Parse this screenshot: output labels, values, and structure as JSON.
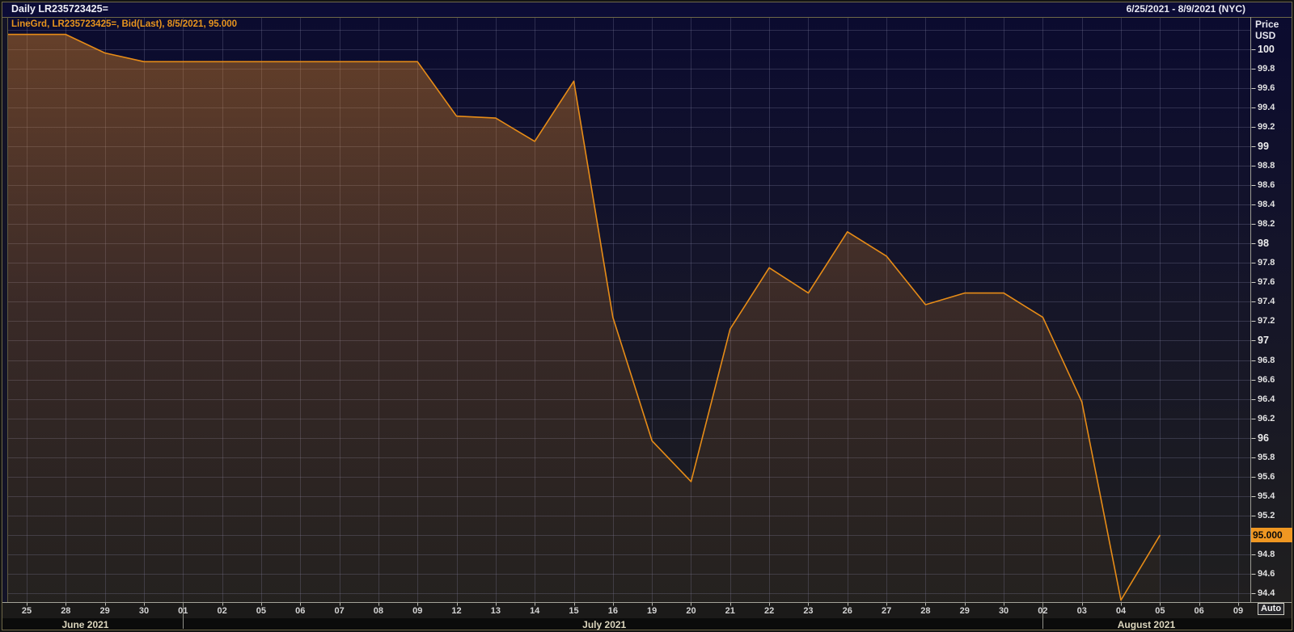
{
  "window": {
    "title": "Daily LR235723425=",
    "date_range": "6/25/2021 - 8/9/2021 (NYC)"
  },
  "legend": {
    "text": "LineGrd, LR235723425=, Bid(Last), 8/5/2021, 95.000"
  },
  "y_axis": {
    "title_line1": "Price",
    "title_line2": "USD",
    "tick_labels": [
      "100",
      "99.8",
      "99.6",
      "99.4",
      "99.2",
      "99",
      "98.8",
      "98.6",
      "98.4",
      "98.2",
      "98",
      "97.8",
      "97.6",
      "97.4",
      "97.2",
      "97",
      "96.8",
      "96.6",
      "96.4",
      "96.2",
      "96",
      "95.8",
      "95.6",
      "95.4",
      "95.2",
      "94.8",
      "94.6",
      "94.4"
    ],
    "last_price_badge": "95.000",
    "auto_button": "Auto"
  },
  "x_axis": {
    "tick_labels": [
      "25",
      "28",
      "29",
      "30",
      "01",
      "02",
      "05",
      "06",
      "07",
      "08",
      "09",
      "12",
      "13",
      "14",
      "15",
      "16",
      "19",
      "20",
      "21",
      "22",
      "23",
      "26",
      "27",
      "28",
      "29",
      "30",
      "02",
      "03",
      "04",
      "05",
      "06",
      "09"
    ]
  },
  "chart_data": {
    "type": "area",
    "title": "Daily LR235723425=",
    "series_name": "LR235723425= Bid(Last)",
    "x": [
      "Jun 25",
      "Jun 28",
      "Jun 29",
      "Jun 30",
      "Jul 01",
      "Jul 02",
      "Jul 05",
      "Jul 06",
      "Jul 07",
      "Jul 08",
      "Jul 09",
      "Jul 12",
      "Jul 13",
      "Jul 14",
      "Jul 15",
      "Jul 16",
      "Jul 19",
      "Jul 20",
      "Jul 21",
      "Jul 22",
      "Jul 23",
      "Jul 26",
      "Jul 27",
      "Jul 28",
      "Jul 29",
      "Jul 30",
      "Aug 02",
      "Aug 03",
      "Aug 04",
      "Aug 05"
    ],
    "values": [
      100.15,
      100.15,
      99.96,
      99.87,
      99.87,
      99.87,
      99.87,
      99.87,
      99.87,
      99.87,
      99.87,
      99.31,
      99.29,
      99.05,
      99.67,
      97.24,
      95.97,
      95.55,
      97.12,
      97.75,
      97.49,
      98.12,
      97.87,
      97.37,
      97.49,
      97.49,
      97.24,
      96.37,
      94.33,
      95.0
    ],
    "last_value": 95.0,
    "ylabel": "Price USD",
    "ylim": [
      94.31,
      100.33
    ],
    "y_tick_step": 0.2,
    "grid": true,
    "x_tick_count": 32,
    "month_separator_indices": [
      4,
      26
    ],
    "month_label_positions": [
      {
        "label": "June 2021",
        "index": 1.5
      },
      {
        "label": "July 2021",
        "index": 14.78
      },
      {
        "label": "August 2021",
        "index": 28.65
      }
    ],
    "line_color": "#e78c17",
    "fill_top_color": "rgba(243,146,33,0.40)",
    "fill_mid_color": "rgba(243,146,33,0.16)",
    "fill_bottom_color": "rgba(243,146,33,0.02)",
    "bg_top_color": "#0b0b2f",
    "bg_bottom_color": "#201f1f",
    "badge_color": "#ef9722"
  }
}
